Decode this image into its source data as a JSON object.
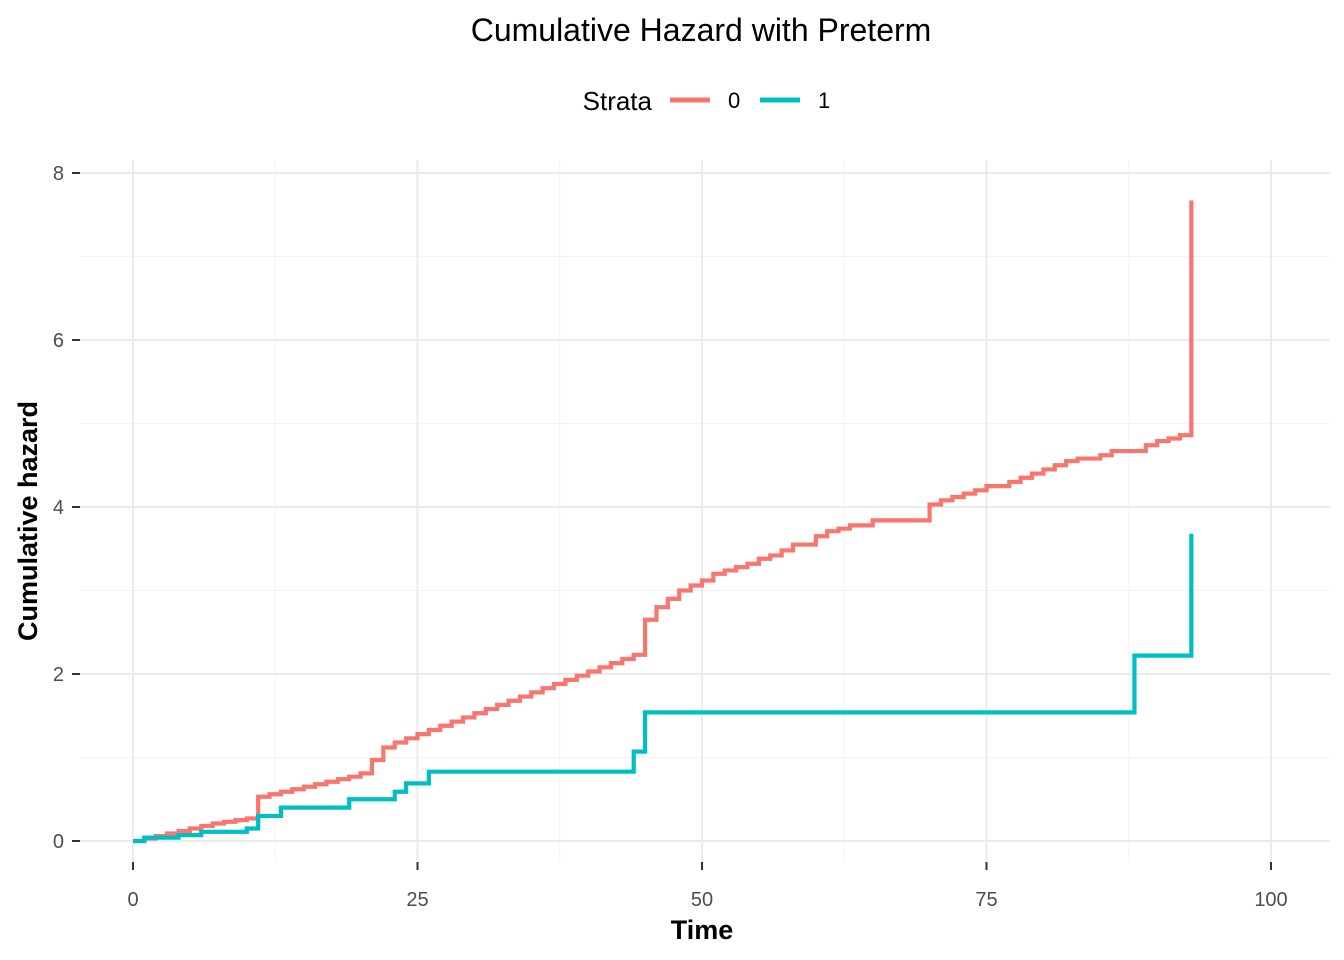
{
  "chart_data": {
    "type": "line",
    "step": true,
    "title": "Cumulative Hazard with Preterm",
    "xlabel": "Time",
    "ylabel": "Cumulative hazard",
    "xlim": [
      0,
      100
    ],
    "ylim": [
      0,
      8
    ],
    "x_ticks": [
      0,
      25,
      50,
      75,
      100
    ],
    "y_ticks": [
      0,
      2,
      4,
      6,
      8
    ],
    "grid": true,
    "legend": {
      "title": "Strata",
      "position": "top"
    },
    "series": [
      {
        "name": "0",
        "color": "#F8766D",
        "x": [
          0,
          1,
          2,
          3,
          4,
          5,
          6,
          7,
          8,
          9,
          10,
          11,
          12,
          13,
          14,
          15,
          16,
          17,
          18,
          19,
          20,
          21,
          22,
          23,
          24,
          25,
          26,
          27,
          28,
          29,
          30,
          31,
          32,
          33,
          34,
          35,
          36,
          37,
          38,
          39,
          40,
          41,
          42,
          43,
          44,
          45,
          46,
          47,
          48,
          49,
          50,
          51,
          52,
          53,
          54,
          55,
          56,
          57,
          58,
          60,
          61,
          62,
          63,
          65,
          66,
          70,
          71,
          72,
          73,
          74,
          75,
          77,
          78,
          79,
          80,
          81,
          82,
          83,
          85,
          86,
          87,
          89,
          90,
          91,
          92,
          93,
          93
        ],
        "y": [
          0.0,
          0.03,
          0.06,
          0.09,
          0.12,
          0.15,
          0.18,
          0.21,
          0.23,
          0.25,
          0.27,
          0.53,
          0.56,
          0.59,
          0.62,
          0.65,
          0.68,
          0.71,
          0.74,
          0.77,
          0.81,
          0.97,
          1.12,
          1.18,
          1.23,
          1.28,
          1.33,
          1.38,
          1.43,
          1.48,
          1.53,
          1.58,
          1.63,
          1.68,
          1.73,
          1.78,
          1.83,
          1.88,
          1.93,
          1.98,
          2.03,
          2.08,
          2.13,
          2.18,
          2.23,
          2.65,
          2.8,
          2.9,
          3.0,
          3.06,
          3.12,
          3.2,
          3.24,
          3.28,
          3.32,
          3.38,
          3.42,
          3.48,
          3.55,
          3.65,
          3.71,
          3.74,
          3.78,
          3.84,
          3.84,
          4.03,
          4.08,
          4.12,
          4.16,
          4.2,
          4.25,
          4.3,
          4.35,
          4.4,
          4.45,
          4.5,
          4.55,
          4.58,
          4.62,
          4.67,
          4.67,
          4.74,
          4.79,
          4.82,
          4.86,
          4.86,
          7.67
        ]
      },
      {
        "name": "1",
        "color": "#00BFC4",
        "x": [
          0,
          1,
          4,
          6,
          10,
          11,
          13,
          19,
          23,
          24,
          26,
          44,
          45,
          88,
          93,
          93
        ],
        "y": [
          0.0,
          0.04,
          0.07,
          0.11,
          0.15,
          0.3,
          0.4,
          0.5,
          0.59,
          0.69,
          0.83,
          1.07,
          1.54,
          2.22,
          2.22,
          3.68
        ]
      }
    ]
  }
}
